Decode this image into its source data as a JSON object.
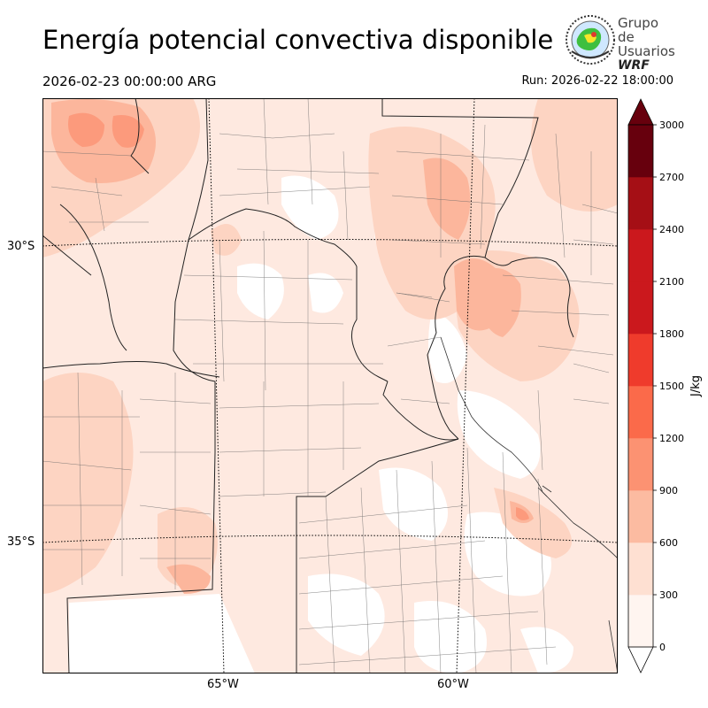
{
  "header": {
    "title": "Energía potencial convectiva disponible",
    "valid_time": "2026-02-23 00:00:00 ARG",
    "run_time": "Run: 2026-02-22 18:00:00"
  },
  "logo": {
    "line1": "Grupo de",
    "line2": "Usuarios",
    "line3": "WRF"
  },
  "map": {
    "lat_labels": [
      "30°S",
      "35°S"
    ],
    "lon_labels": [
      "65°W",
      "60°W"
    ]
  },
  "colorbar": {
    "unit": "J/kg",
    "ticks": [
      "0",
      "300",
      "600",
      "900",
      "1200",
      "1500",
      "1800",
      "2100",
      "2400",
      "2700",
      "3000"
    ],
    "colors": [
      "#fff5f0",
      "#fee0d2",
      "#fcbba1",
      "#fc9272",
      "#fb6a4a",
      "#ef3b2c",
      "#cb181d",
      "#cb181d",
      "#a50f15",
      "#67000d"
    ],
    "over_color": "#67000d"
  }
}
